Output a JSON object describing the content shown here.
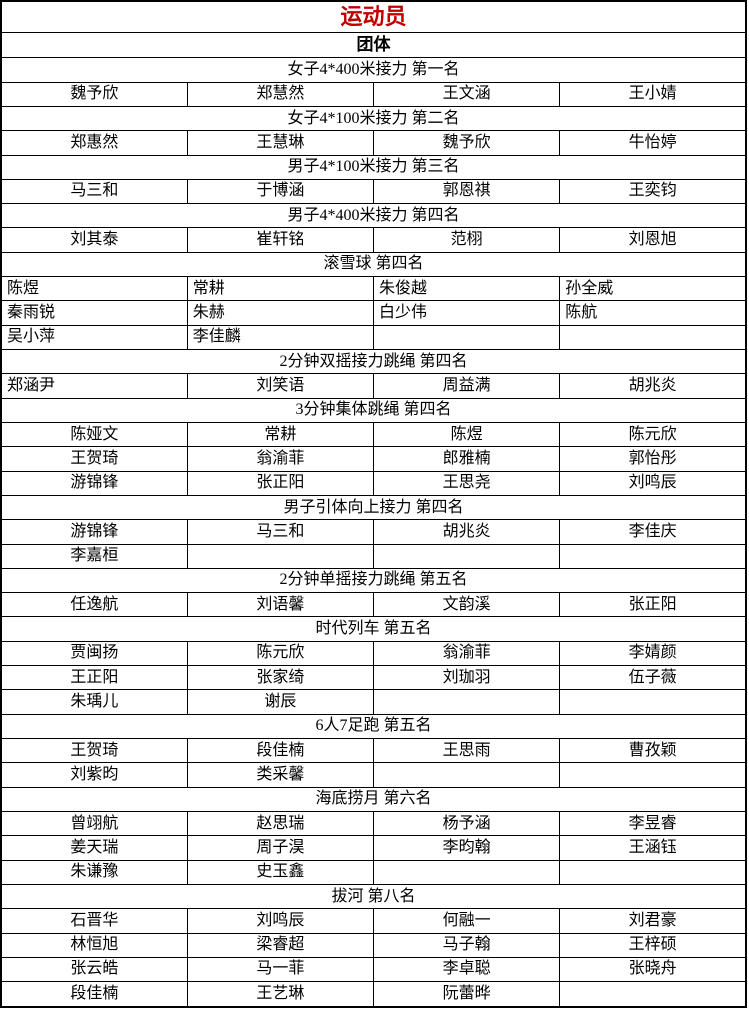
{
  "page": {
    "title": "运动员",
    "subtitle": "团体",
    "title_color": "#c00000",
    "border_color": "#000000",
    "background_color": "#ffffff"
  },
  "table": {
    "columns": 4,
    "sections": [
      {
        "header": "女子4*400米接力 第一名",
        "align": "center",
        "rows": [
          [
            "魏予欣",
            "郑慧然",
            "王文涵",
            "王小婧"
          ]
        ]
      },
      {
        "header": "女子4*100米接力 第二名",
        "align": "center",
        "rows": [
          [
            "郑惠然",
            "王慧琳",
            "魏予欣",
            "牛怡婷"
          ]
        ]
      },
      {
        "header": "男子4*100米接力 第三名",
        "align": "center",
        "rows": [
          [
            "马三和",
            "于博涵",
            "郭恩祺",
            "王奕钧"
          ]
        ]
      },
      {
        "header": "男子4*400米接力 第四名",
        "align": "center",
        "rows": [
          [
            "刘其泰",
            "崔轩铭",
            "范栩",
            "刘恩旭"
          ]
        ]
      },
      {
        "header": "滚雪球 第四名",
        "align": "left",
        "rows": [
          [
            "陈煜",
            "常耕",
            "朱俊越",
            "孙全威"
          ],
          [
            "秦雨锐",
            "朱赫",
            "白少伟",
            "陈航"
          ],
          [
            "吴小萍",
            "李佳麟",
            "",
            ""
          ]
        ]
      },
      {
        "header": "2分钟双摇接力跳绳 第四名",
        "align": "center",
        "first_col_align": "left",
        "rows": [
          [
            "郑涵尹",
            "刘笑语",
            "周益满",
            "胡兆炎"
          ]
        ]
      },
      {
        "header": "3分钟集体跳绳 第四名",
        "align": "center",
        "rows": [
          [
            "陈娅文",
            "常耕",
            "陈煜",
            "陈元欣"
          ],
          [
            "王贺琦",
            "翁渝菲",
            "郎雅楠",
            "郭怡彤"
          ],
          [
            "游锦锋",
            "张正阳",
            "王思尧",
            "刘鸣辰"
          ]
        ]
      },
      {
        "header": "男子引体向上接力 第四名",
        "align": "center",
        "rows": [
          [
            "游锦锋",
            "马三和",
            "胡兆炎",
            "李佳庆"
          ],
          [
            "李嘉桓",
            "",
            "",
            ""
          ]
        ]
      },
      {
        "header": "2分钟单摇接力跳绳 第五名",
        "align": "center",
        "rows": [
          [
            "任逸航",
            "刘语馨",
            "文韵溪",
            "张正阳"
          ]
        ]
      },
      {
        "header": "时代列车 第五名",
        "align": "center",
        "rows": [
          [
            "贾闽扬",
            "陈元欣",
            "翁渝菲",
            "李婧颜"
          ],
          [
            "王正阳",
            "张家绮",
            "刘珈羽",
            "伍子薇"
          ],
          [
            "朱瑀儿",
            "谢辰",
            "",
            ""
          ]
        ]
      },
      {
        "header": "6人7足跑 第五名",
        "align": "center",
        "rows": [
          [
            "王贺琦",
            "段佳楠",
            "王思雨",
            "曹孜颖"
          ],
          [
            "刘紫昀",
            "类采馨",
            "",
            ""
          ]
        ]
      },
      {
        "header": "海底捞月 第六名",
        "align": "center",
        "rows": [
          [
            "曾翊航",
            "赵思瑞",
            "杨予涵",
            "李昱睿"
          ],
          [
            "姜天瑞",
            "周子淏",
            "李昀翰",
            "王涵钰"
          ],
          [
            "朱谦豫",
            "史玉鑫",
            "",
            ""
          ]
        ]
      },
      {
        "header": "拔河 第八名",
        "align": "center",
        "rows": [
          [
            "石晋华",
            "刘鸣辰",
            "何融一",
            "刘君豪"
          ],
          [
            "林恒旭",
            "梁睿超",
            "马子翰",
            "王梓硕"
          ],
          [
            "张云皓",
            "马一菲",
            "李卓聪",
            "张晓舟"
          ],
          [
            "段佳楠",
            "王艺琳",
            "阮蕾晔",
            ""
          ]
        ]
      }
    ]
  }
}
